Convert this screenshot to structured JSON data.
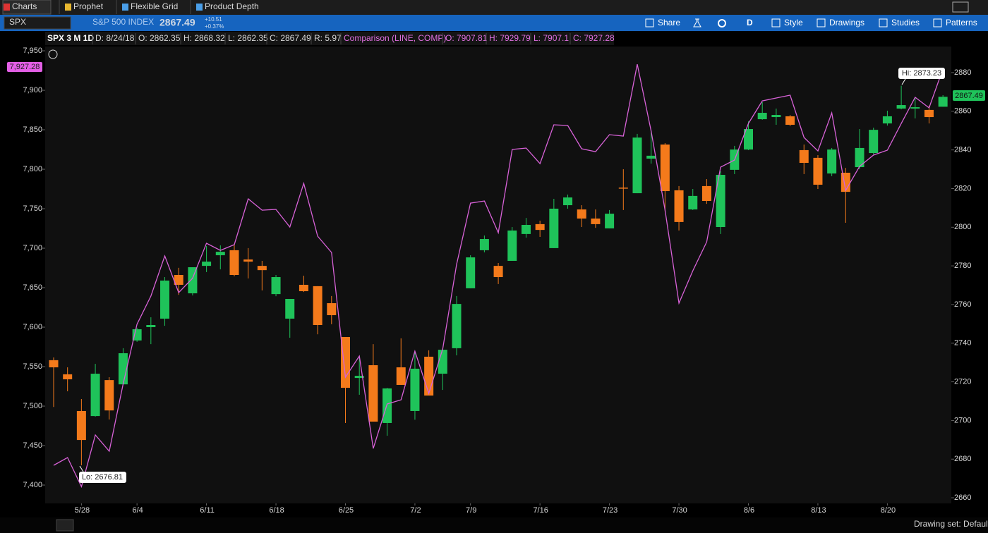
{
  "tabs": [
    "Charts",
    "Prophet",
    "Flexible Grid",
    "Product Depth"
  ],
  "quote": {
    "symbol": "SPX",
    "description": "S&P 500 INDEX",
    "last": "2867.49",
    "change": "+10.51",
    "change_pct": "+0.37%"
  },
  "toolbar": [
    "Share",
    "D",
    "Style",
    "Drawings",
    "Studies",
    "Patterns"
  ],
  "info_bar": {
    "title": "SPX 3 M 1D",
    "fields": [
      "D: 8/24/18",
      "O: 2862.35",
      "H: 2868.32",
      "L: 2862.35",
      "C: 2867.49",
      "R: 5.97"
    ],
    "comparison": "Comparison (LINE, COMP)",
    "comparison_fields": [
      "O: 7907.81",
      "H: 7929.79",
      "L: 7907.1",
      "C: 7927.28"
    ]
  },
  "status": "Drawing set: Default",
  "chart_data": {
    "type": "candlestick",
    "categories": [
      null,
      null,
      "5/28",
      null,
      null,
      null,
      "6/4",
      null,
      null,
      null,
      null,
      "6/11",
      null,
      null,
      null,
      null,
      "6/18",
      null,
      null,
      null,
      null,
      "6/25",
      null,
      null,
      null,
      null,
      "7/2",
      null,
      null,
      null,
      "7/9",
      null,
      null,
      null,
      null,
      "7/16",
      null,
      null,
      null,
      null,
      "7/23",
      null,
      null,
      null,
      null,
      "7/30",
      null,
      null,
      null,
      null,
      "8/6",
      null,
      null,
      null,
      null,
      "8/13",
      null,
      null,
      null,
      null,
      "8/20",
      null,
      null,
      null,
      null
    ],
    "open": [
      2731.2,
      2723.9,
      2704.9,
      2702.3,
      2720.9,
      2718.7,
      2741.4,
      2748.3,
      2752.7,
      2775.3,
      2765.8,
      2780,
      2785.5,
      2788.1,
      2783.3,
      2780,
      2765.4,
      2752.7,
      2770.2,
      2769.5,
      2760.7,
      2743.2,
      2722,
      2728.6,
      2698.7,
      2727.5,
      2704.9,
      2733,
      2724.2,
      2737.4,
      2768.4,
      2788.1,
      2780,
      2782.6,
      2796.5,
      2801.6,
      2789.2,
      2811.4,
      2809.2,
      2804.5,
      2799.4,
      2820.5,
      2817.6,
      2835.5,
      2842.8,
      2819.1,
      2809.2,
      2821.3,
      2800.1,
      2829.7,
      2840.2,
      2855.9,
      2857,
      2857.4,
      2839.9,
      2835.9,
      2827.8,
      2828.2,
      2831.1,
      2838.4,
      2853.7,
      2861.4,
      2861.4,
      2860.7,
      2862.35
    ],
    "high": [
      2732.6,
      2727.5,
      2711.1,
      2729.3,
      2722.4,
      2737.4,
      2748,
      2753.4,
      2774.2,
      2779,
      2779.3,
      2790.3,
      2790.6,
      2791.3,
      2789.2,
      2782.6,
      2775.3,
      2762.9,
      2774.9,
      2769.5,
      2764.4,
      2743.2,
      2733.3,
      2739.5,
      2716.9,
      2742.5,
      2735.9,
      2736.3,
      2737.4,
      2764.4,
      2785.5,
      2795.7,
      2781.5,
      2800.1,
      2804.8,
      2803.4,
      2814.7,
      2816.9,
      2811.4,
      2809.2,
      2808.9,
      2830,
      2848.3,
      2850.1,
      2843.5,
      2821.3,
      2819.8,
      2824.9,
      2828.9,
      2842.1,
      2854.8,
      2864.7,
      2861.4,
      2858.1,
      2842.8,
      2837.3,
      2841,
      2830.7,
      2850.8,
      2851.5,
      2860.3,
      2873.23,
      2866.9,
      2862.9,
      2868.32
    ],
    "low": [
      2707,
      2715.1,
      2676.81,
      2702,
      2700.5,
      2718.7,
      2740.7,
      2739.5,
      2749,
      2765,
      2764.7,
      2776.8,
      2778.2,
      2774.6,
      2773.5,
      2767.3,
      2764.3,
      2742.8,
      2766.5,
      2744.6,
      2749.8,
      2698.7,
      2713.3,
      2699.4,
      2692.1,
      2718.4,
      2700.4,
      2712.9,
      2715.8,
      2733.7,
      2768.4,
      2787,
      2770.6,
      2782.6,
      2794.6,
      2795,
      2789.2,
      2809.6,
      2800.1,
      2799.7,
      2799.4,
      2808.9,
      2817.6,
      2832.9,
      2808.1,
      2798.3,
      2808.9,
      2812.1,
      2796.5,
      2827.5,
      2839.9,
      2855.6,
      2853,
      2852.3,
      2827.5,
      2819.8,
      2826.4,
      2802.3,
      2830,
      2837.7,
      2852.6,
      2861,
      2856.3,
      2853.7,
      2862.35
    ],
    "close": [
      2727.5,
      2721.3,
      2689.9,
      2724.2,
      2705.2,
      2734.8,
      2747.2,
      2749.4,
      2772.4,
      2770.2,
      2779.3,
      2782.2,
      2787.3,
      2775.3,
      2782.2,
      2777.8,
      2774.2,
      2762.9,
      2766.9,
      2749.4,
      2754.5,
      2716.9,
      2723.1,
      2699.4,
      2716.6,
      2718.4,
      2726.8,
      2712.9,
      2736.6,
      2760.3,
      2784.4,
      2793.9,
      2774.2,
      2798.3,
      2801.2,
      2798.6,
      2809.6,
      2815.4,
      2804.5,
      2801.6,
      2807,
      2820.1,
      2846.4,
      2837,
      2818.7,
      2802.7,
      2816.2,
      2813.6,
      2827.1,
      2840.2,
      2850.8,
      2859.2,
      2858.1,
      2853,
      2833.3,
      2822,
      2840.2,
      2818.3,
      2841,
      2850.4,
      2857.4,
      2863.2,
      2862.1,
      2857,
      2867.49
    ],
    "up_color": "#1fc35a",
    "down_color": "#f47a1b",
    "ylim": [
      2657.1,
      2893.5
    ],
    "yticks": [
      2660,
      2680,
      2700,
      2720,
      2740,
      2760,
      2780,
      2800,
      2820,
      2840,
      2860,
      2880
    ],
    "y2lim": [
      7376.8,
      7955.4
    ],
    "y2ticks": [
      {
        "value": 7400,
        "label": "7,400"
      },
      {
        "value": 7450,
        "label": "7,450"
      },
      {
        "value": 7500,
        "label": "7,500"
      },
      {
        "value": 7550,
        "label": "7,550"
      },
      {
        "value": 7600,
        "label": "7,600"
      },
      {
        "value": 7650,
        "label": "7,650"
      },
      {
        "value": 7700,
        "label": "7,700"
      },
      {
        "value": 7750,
        "label": "7,750"
      },
      {
        "value": 7800,
        "label": "7,800"
      },
      {
        "value": 7850,
        "label": "7,850"
      },
      {
        "value": 7900,
        "label": "7,900"
      },
      {
        "value": 7950,
        "label": "7,950"
      }
    ],
    "series": [
      {
        "type": "line",
        "color": "#d862d8",
        "axis": "y2",
        "values": [
          7425,
          7434.8,
          7398,
          7463.4,
          7442.9,
          7527.7,
          7603.6,
          7639.3,
          7690.2,
          7643.8,
          7662,
          7706.3,
          7697.3,
          7704.5,
          7762.5,
          7748.2,
          7749.1,
          7726.8,
          7782.1,
          7715.2,
          7694.6,
          7536.6,
          7563.4,
          7446.4,
          7502.7,
          7508,
          7569.6,
          7516.1,
          7572.3,
          7679.5,
          7757.1,
          7759.8,
          7719.6,
          7825,
          7826.8,
          7807.1,
          7856.3,
          7855.4,
          7825.9,
          7822.3,
          7843.8,
          7842,
          7933,
          7848.2,
          7748.2,
          7630.4,
          7671.4,
          7708,
          7802.7,
          7811.6,
          7858,
          7886.6,
          7890.2,
          7893.8,
          7840.2,
          7823.2,
          7871.4,
          7773.2,
          7803.6,
          7817.9,
          7824.1,
          7858,
          7891.1,
          7877.7,
          7927.28
        ]
      }
    ],
    "annotations": [
      "Hi: 2873.23",
      "Lo: 2676.81"
    ],
    "price_labels": [
      "7,927.28",
      "2867.49"
    ]
  }
}
